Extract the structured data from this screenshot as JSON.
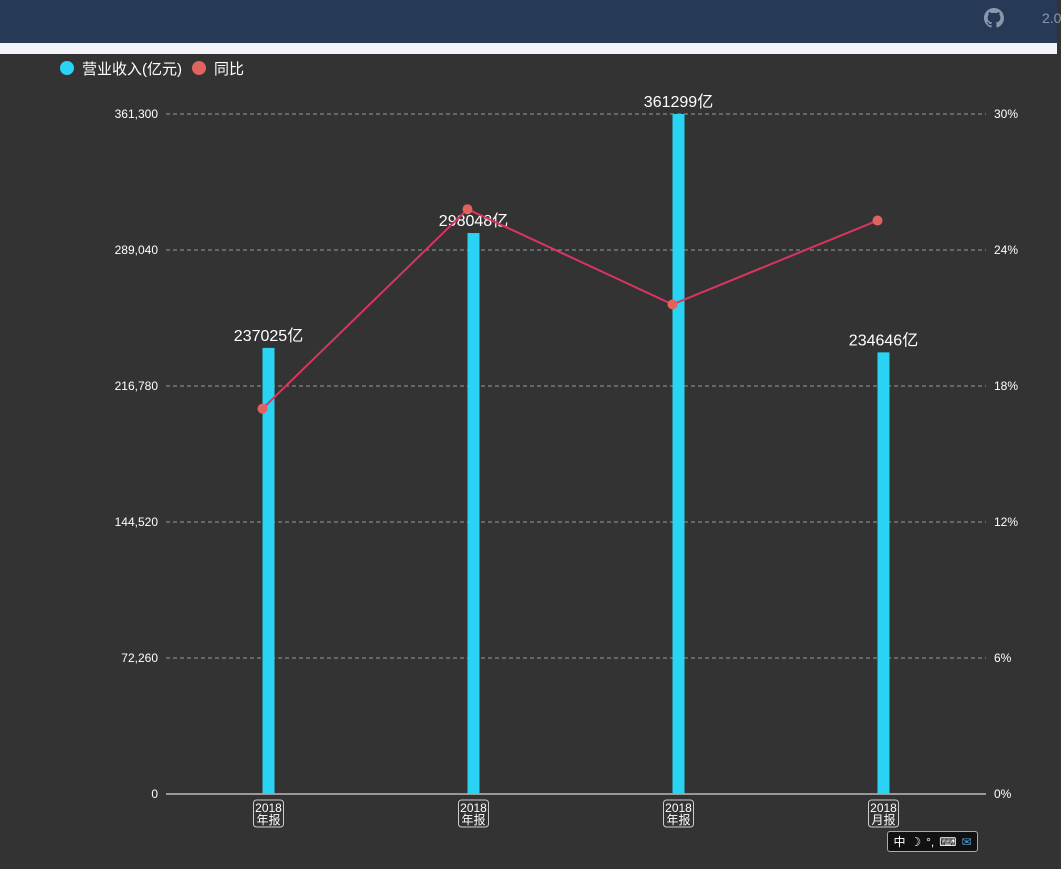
{
  "topbar": {
    "version": "2.0"
  },
  "legend": [
    {
      "label": "营业收入(亿元)",
      "color": "#2ad3f3"
    },
    {
      "label": "同比",
      "color": "#e0635f"
    }
  ],
  "chart_data": {
    "type": "bar+line",
    "categories": [
      "2018\n年报",
      "2018\n年报",
      "2018\n年报",
      "2018\n月报"
    ],
    "series": [
      {
        "name": "营业收入(亿元)",
        "type": "bar",
        "axis": "left",
        "color": "#2ad3f3",
        "values": [
          237025,
          298048,
          361299,
          234646
        ],
        "labels": [
          "237025亿",
          "298048亿",
          "361299亿",
          "234646亿"
        ]
      },
      {
        "name": "同比",
        "type": "line",
        "axis": "right",
        "color": "#d9355f",
        "marker_color": "#e0635f",
        "values": [
          17.0,
          25.8,
          21.6,
          25.3
        ]
      }
    ],
    "left_axis": {
      "ylim": [
        0,
        361300
      ],
      "ticks": [
        0,
        72260,
        144520,
        216780,
        289040,
        361300
      ],
      "tick_labels": [
        "0",
        "72,260",
        "144,520",
        "216,780",
        "289,040",
        "361,300"
      ]
    },
    "right_axis": {
      "ylim": [
        0,
        30
      ],
      "ticks": [
        0,
        6,
        12,
        18,
        24,
        30
      ],
      "tick_labels": [
        "0%",
        "6%",
        "12%",
        "18%",
        "24%",
        "30%"
      ]
    },
    "grid": true,
    "grid_style": "dashed",
    "legend_position": "top-left"
  },
  "ime": {
    "zh": "中",
    "moon": "☽",
    "punct": "°,",
    "keyboard": "⌨",
    "mail": "✉"
  }
}
